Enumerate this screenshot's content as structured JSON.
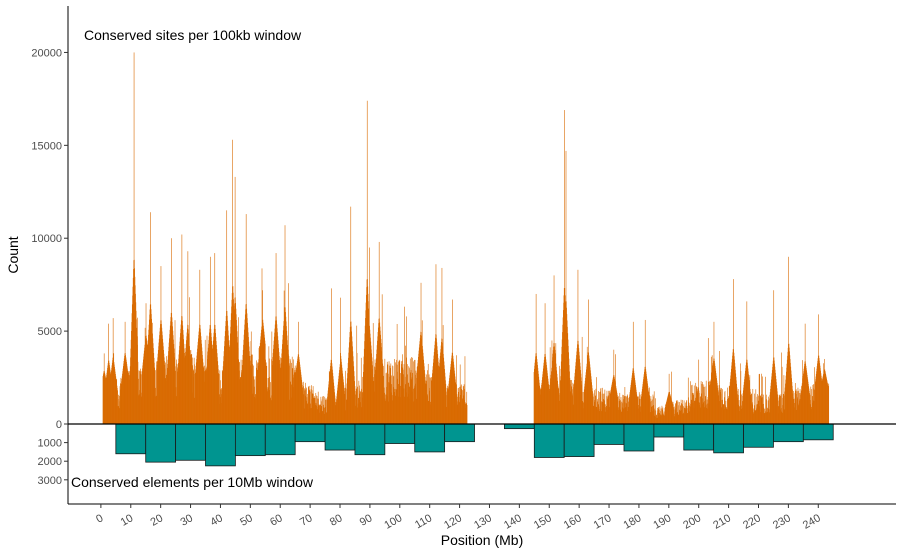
{
  "chart_data": {
    "type": "bar",
    "xlabel": "Position (Mb)",
    "ylabel": "Count",
    "x_ticks": [
      0,
      10,
      20,
      30,
      40,
      50,
      60,
      70,
      80,
      90,
      100,
      110,
      120,
      130,
      140,
      150,
      160,
      170,
      180,
      190,
      200,
      210,
      220,
      230,
      240
    ],
    "y_ticks_top": [
      0,
      5000,
      10000,
      15000,
      20000
    ],
    "y_ticks_bottom": [
      1000,
      2000,
      3000
    ],
    "xlim": [
      -11,
      266
    ],
    "ylim_top": [
      0,
      22500
    ],
    "ylim_bottom": [
      0,
      4300
    ],
    "annotations": {
      "top": "Conserved sites per 100kb window",
      "bottom": "Conserved elements per 10Mb window"
    },
    "colors": {
      "sites": "#D96A00",
      "elements": "#009590",
      "element_border": "#1a1a1a"
    },
    "series": [
      {
        "name": "Conserved sites per 100kb window",
        "segments": [
          [
            0.6,
            122.4
          ],
          [
            144.8,
            243.4
          ]
        ],
        "window_mb": 0.1,
        "peaks": [
          {
            "x": 1.0,
            "y": 3800
          },
          {
            "x": 2.5,
            "y": 5400
          },
          {
            "x": 4.0,
            "y": 5700
          },
          {
            "x": 8.0,
            "y": 5500
          },
          {
            "x": 11.0,
            "y": 20000
          },
          {
            "x": 15.0,
            "y": 6500
          },
          {
            "x": 16.5,
            "y": 11400
          },
          {
            "x": 20.0,
            "y": 8500
          },
          {
            "x": 23.5,
            "y": 10000
          },
          {
            "x": 27.0,
            "y": 10200
          },
          {
            "x": 29.0,
            "y": 9300
          },
          {
            "x": 33.0,
            "y": 8300
          },
          {
            "x": 36.5,
            "y": 9000
          },
          {
            "x": 38.0,
            "y": 9200
          },
          {
            "x": 42.0,
            "y": 11500
          },
          {
            "x": 44.0,
            "y": 15300
          },
          {
            "x": 44.8,
            "y": 13300
          },
          {
            "x": 48.5,
            "y": 11300
          },
          {
            "x": 54.0,
            "y": 7200
          },
          {
            "x": 58.5,
            "y": 9200
          },
          {
            "x": 61.5,
            "y": 10700
          },
          {
            "x": 66.0,
            "y": 5500
          },
          {
            "x": 77.0,
            "y": 7300
          },
          {
            "x": 80.0,
            "y": 6800
          },
          {
            "x": 83.5,
            "y": 11700
          },
          {
            "x": 89.0,
            "y": 17400
          },
          {
            "x": 89.7,
            "y": 9500
          },
          {
            "x": 93.0,
            "y": 9800
          },
          {
            "x": 107.0,
            "y": 7600
          },
          {
            "x": 112.0,
            "y": 8600
          },
          {
            "x": 114.0,
            "y": 8400
          },
          {
            "x": 117.5,
            "y": 6700
          },
          {
            "x": 145.5,
            "y": 7000
          },
          {
            "x": 148.5,
            "y": 6500
          },
          {
            "x": 151.5,
            "y": 8000
          },
          {
            "x": 155.0,
            "y": 16900
          },
          {
            "x": 155.5,
            "y": 14700
          },
          {
            "x": 159.5,
            "y": 8300
          },
          {
            "x": 163.0,
            "y": 6700
          },
          {
            "x": 171.5,
            "y": 4000
          },
          {
            "x": 178.0,
            "y": 5500
          },
          {
            "x": 182.0,
            "y": 5600
          },
          {
            "x": 190.0,
            "y": 2700
          },
          {
            "x": 205.0,
            "y": 5500
          },
          {
            "x": 211.5,
            "y": 7800
          },
          {
            "x": 216.0,
            "y": 6600
          },
          {
            "x": 225.0,
            "y": 7200
          },
          {
            "x": 230.0,
            "y": 9000
          },
          {
            "x": 235.5,
            "y": 5400
          },
          {
            "x": 240.0,
            "y": 5900
          },
          {
            "x": 242.0,
            "y": 3500
          }
        ]
      },
      {
        "name": "Conserved elements per 10Mb window",
        "bins": [
          {
            "x0": 5,
            "x1": 15,
            "value": 1600
          },
          {
            "x0": 15,
            "x1": 25,
            "value": 2050
          },
          {
            "x0": 25,
            "x1": 35,
            "value": 1950
          },
          {
            "x0": 35,
            "x1": 45,
            "value": 2250
          },
          {
            "x0": 45,
            "x1": 55,
            "value": 1700
          },
          {
            "x0": 55,
            "x1": 65,
            "value": 1650
          },
          {
            "x0": 65,
            "x1": 75,
            "value": 950
          },
          {
            "x0": 75,
            "x1": 85,
            "value": 1400
          },
          {
            "x0": 85,
            "x1": 95,
            "value": 1650
          },
          {
            "x0": 95,
            "x1": 105,
            "value": 1050
          },
          {
            "x0": 105,
            "x1": 115,
            "value": 1500
          },
          {
            "x0": 115,
            "x1": 125,
            "value": 950
          },
          {
            "x0": 135,
            "x1": 145,
            "value": 250
          },
          {
            "x0": 145,
            "x1": 155,
            "value": 1800
          },
          {
            "x0": 155,
            "x1": 165,
            "value": 1750
          },
          {
            "x0": 165,
            "x1": 175,
            "value": 1100
          },
          {
            "x0": 175,
            "x1": 185,
            "value": 1450
          },
          {
            "x0": 185,
            "x1": 195,
            "value": 700
          },
          {
            "x0": 195,
            "x1": 205,
            "value": 1400
          },
          {
            "x0": 205,
            "x1": 215,
            "value": 1550
          },
          {
            "x0": 215,
            "x1": 225,
            "value": 1250
          },
          {
            "x0": 225,
            "x1": 235,
            "value": 950
          },
          {
            "x0": 235,
            "x1": 245,
            "value": 850
          }
        ]
      }
    ]
  }
}
